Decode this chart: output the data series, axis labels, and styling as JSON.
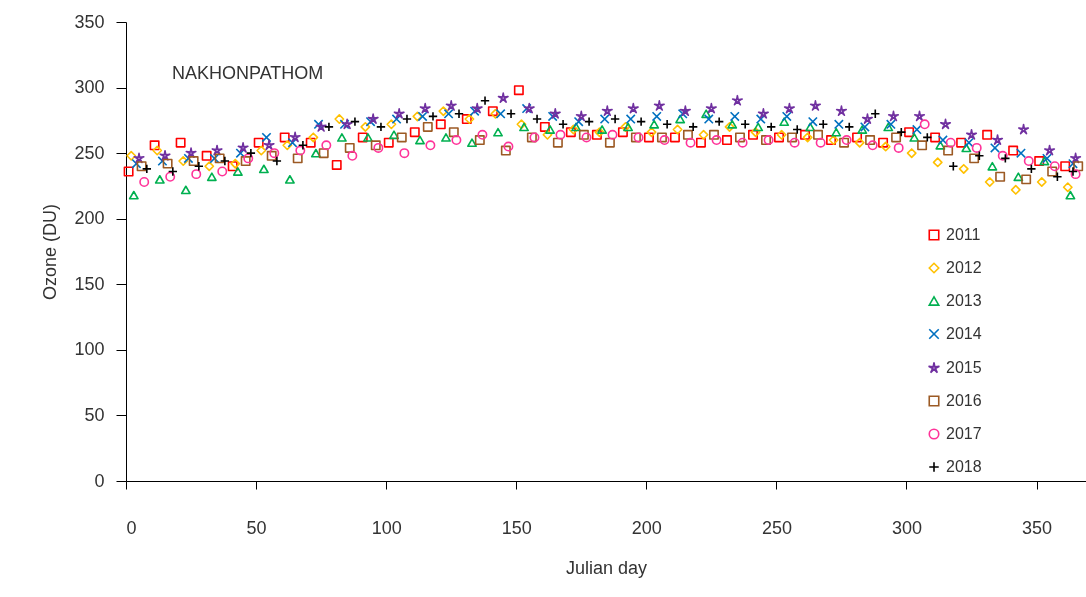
{
  "chart_data": {
    "type": "scatter",
    "title": "NAKHONPATHOM",
    "xlabel": "Julian day",
    "ylabel": "Ozone (DU)",
    "xlim": [
      0,
      369
    ],
    "xticks": [
      0,
      50,
      100,
      150,
      200,
      250,
      300,
      350
    ],
    "ylim": [
      0,
      350
    ],
    "yticks": [
      0,
      50,
      100,
      150,
      200,
      250,
      300,
      350
    ],
    "grid": false,
    "legend": "bottom right",
    "series": [
      {
        "name": "2011",
        "color": "#ff0000",
        "marker": "square",
        "x": [
          1,
          11,
          21,
          31,
          41,
          51,
          61,
          71,
          81,
          91,
          101,
          111,
          121,
          131,
          141,
          151,
          161,
          171,
          181,
          191,
          201,
          211,
          221,
          231,
          241,
          251,
          261,
          271,
          281,
          291,
          301,
          311,
          321,
          331,
          341,
          351,
          361
        ],
        "values": [
          236,
          256,
          258,
          248,
          240,
          258,
          262,
          258,
          241,
          262,
          258,
          266,
          272,
          276,
          282,
          298,
          270,
          266,
          264,
          266,
          262,
          262,
          258,
          260,
          264,
          262,
          264,
          260,
          262,
          258,
          266,
          262,
          258,
          264,
          252,
          244,
          240
        ]
      },
      {
        "name": "2012",
        "color": "#ffc000",
        "marker": "diamond",
        "x": [
          2,
          12,
          22,
          32,
          42,
          52,
          62,
          72,
          82,
          92,
          102,
          112,
          122,
          132,
          142,
          152,
          162,
          172,
          182,
          192,
          202,
          212,
          222,
          232,
          242,
          252,
          262,
          272,
          282,
          292,
          302,
          312,
          322,
          332,
          342,
          352,
          362
        ],
        "values": [
          248,
          252,
          244,
          240,
          242,
          252,
          256,
          262,
          276,
          270,
          272,
          278,
          282,
          276,
          280,
          272,
          264,
          268,
          266,
          270,
          266,
          268,
          264,
          270,
          266,
          264,
          262,
          260,
          258,
          255,
          250,
          243,
          238,
          228,
          222,
          228,
          224
        ]
      },
      {
        "name": "2013",
        "color": "#00b050",
        "marker": "triangle",
        "x": [
          3,
          13,
          23,
          33,
          43,
          53,
          63,
          73,
          83,
          93,
          103,
          113,
          123,
          133,
          143,
          153,
          163,
          173,
          183,
          193,
          203,
          213,
          223,
          233,
          243,
          253,
          263,
          273,
          283,
          293,
          303,
          313,
          323,
          333,
          343,
          353,
          363
        ],
        "values": [
          218,
          230,
          222,
          232,
          236,
          238,
          230,
          250,
          262,
          262,
          264,
          260,
          262,
          258,
          266,
          270,
          268,
          270,
          268,
          270,
          272,
          276,
          280,
          272,
          270,
          274,
          270,
          266,
          268,
          270,
          262,
          256,
          254,
          240,
          232,
          244,
          218
        ]
      },
      {
        "name": "2014",
        "color": "#0070c0",
        "marker": "cross",
        "x": [
          4,
          14,
          24,
          34,
          44,
          54,
          64,
          74,
          84,
          94,
          104,
          114,
          124,
          134,
          144,
          154,
          164,
          174,
          184,
          194,
          204,
          214,
          224,
          234,
          244,
          254,
          264,
          274,
          284,
          294,
          304,
          314,
          324,
          334,
          344,
          354,
          364
        ],
        "values": [
          242,
          244,
          246,
          246,
          250,
          262,
          258,
          272,
          272,
          274,
          276,
          278,
          280,
          282,
          280,
          284,
          278,
          274,
          276,
          276,
          278,
          280,
          276,
          278,
          276,
          278,
          274,
          272,
          270,
          272,
          268,
          260,
          258,
          254,
          250,
          246,
          242
        ]
      },
      {
        "name": "2015",
        "color": "#7030a0",
        "marker": "star",
        "x": [
          5,
          15,
          25,
          35,
          45,
          55,
          65,
          75,
          85,
          95,
          105,
          115,
          125,
          135,
          145,
          155,
          165,
          175,
          185,
          195,
          205,
          215,
          225,
          235,
          245,
          255,
          265,
          275,
          285,
          295,
          305,
          315,
          325,
          335,
          345,
          355,
          365
        ],
        "values": [
          246,
          248,
          250,
          252,
          254,
          256,
          262,
          270,
          272,
          276,
          280,
          284,
          286,
          284,
          292,
          284,
          280,
          278,
          282,
          284,
          286,
          282,
          284,
          290,
          280,
          284,
          286,
          282,
          276,
          278,
          278,
          272,
          264,
          260,
          268,
          252,
          246
        ]
      },
      {
        "name": "2016",
        "color": "#9c5a24",
        "marker": "square",
        "x": [
          6,
          16,
          26,
          36,
          46,
          56,
          66,
          76,
          86,
          96,
          106,
          116,
          126,
          136,
          146,
          156,
          166,
          176,
          186,
          196,
          206,
          216,
          226,
          236,
          246,
          256,
          266,
          276,
          286,
          296,
          306,
          316,
          326,
          336,
          346,
          356,
          366
        ],
        "values": [
          240,
          242,
          244,
          246,
          244,
          248,
          246,
          250,
          254,
          256,
          262,
          270,
          266,
          260,
          252,
          262,
          258,
          264,
          258,
          262,
          262,
          264,
          264,
          262,
          260,
          262,
          264,
          258,
          260,
          262,
          256,
          252,
          246,
          232,
          230,
          236,
          240
        ]
      },
      {
        "name": "2017",
        "color": "#ff3399",
        "marker": "circle",
        "x": [
          7,
          17,
          27,
          37,
          47,
          57,
          67,
          77,
          87,
          97,
          107,
          117,
          127,
          137,
          147,
          157,
          167,
          177,
          187,
          197,
          207,
          217,
          227,
          237,
          247,
          257,
          267,
          277,
          287,
          297,
          307,
          317,
          327,
          337,
          347,
          357,
          365
        ],
        "values": [
          228,
          232,
          234,
          236,
          246,
          250,
          252,
          256,
          248,
          254,
          250,
          256,
          260,
          264,
          255,
          262,
          264,
          262,
          264,
          262,
          260,
          258,
          260,
          258,
          260,
          258,
          258,
          260,
          256,
          254,
          272,
          258,
          254,
          248,
          244,
          240,
          234
        ]
      },
      {
        "name": "2018",
        "color": "#000000",
        "marker": "plus",
        "x": [
          8,
          18,
          28,
          38,
          48,
          58,
          68,
          78,
          88,
          98,
          108,
          118,
          128,
          138,
          148,
          158,
          168,
          178,
          188,
          198,
          208,
          218,
          228,
          238,
          248,
          258,
          268,
          278,
          288,
          298,
          308,
          318,
          328,
          338,
          348,
          358,
          364
        ],
        "values": [
          238,
          236,
          240,
          244,
          250,
          244,
          256,
          270,
          274,
          270,
          276,
          278,
          280,
          290,
          280,
          276,
          272,
          274,
          276,
          274,
          272,
          270,
          274,
          272,
          270,
          268,
          272,
          270,
          280,
          266,
          262,
          240,
          248,
          246,
          238,
          232,
          236
        ]
      }
    ]
  }
}
